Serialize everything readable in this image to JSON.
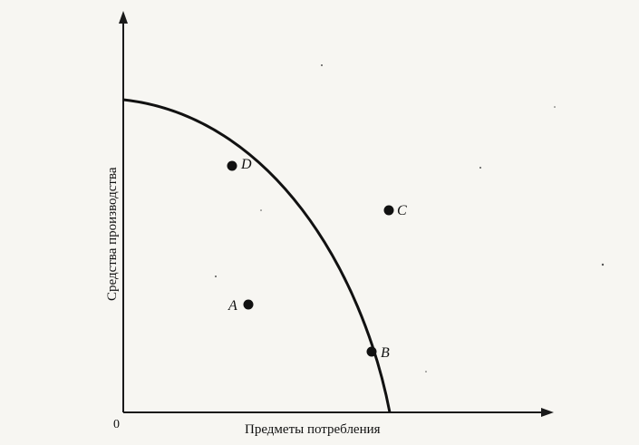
{
  "diagram": {
    "origin_label": "0",
    "x_axis_title": "Предметы потребления",
    "y_axis_title": "Средства производства",
    "points": [
      {
        "id": "D",
        "label": "D",
        "on_curve": true
      },
      {
        "id": "C",
        "label": "C",
        "on_curve": false
      },
      {
        "id": "A",
        "label": "A",
        "on_curve": false
      },
      {
        "id": "B",
        "label": "B",
        "on_curve": true
      }
    ]
  }
}
